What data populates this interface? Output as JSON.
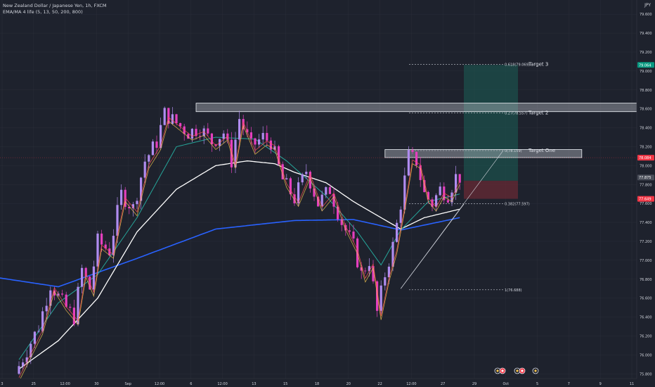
{
  "header": {
    "symbol_title": "New Zealand Dollar / Japanese Yen, 1h, FXCM",
    "indicator_label": "EMA/MA 4 life (5, 13, 50, 200, 800)",
    "currency": "JPY"
  },
  "colors": {
    "background": "#1e222d",
    "grid": "#2a2e39",
    "text": "#d1d4dc",
    "candle_up": "#b08cf0",
    "candle_down": "#e53fbf",
    "ema5": "#ff5252",
    "ema13": "#f9c74f",
    "ema50": "#26a69a",
    "ema200": "#ffffff",
    "ema800": "#2962ff",
    "target_zone": "#1b5e55",
    "stop_zone": "#6b2a35",
    "price_line": "#f23645"
  },
  "chart_data": {
    "type": "candlestick",
    "title": "New Zealand Dollar / Japanese Yen, 1h, FXCM",
    "currency": "JPY",
    "ylim": [
      75.75,
      79.75
    ],
    "y_ticks": [
      "79.600",
      "79.400",
      "79.200",
      "79.000",
      "78.800",
      "78.600",
      "78.400",
      "78.200",
      "78.000",
      "77.800",
      "77.600",
      "77.400",
      "77.200",
      "77.000",
      "76.800",
      "76.600",
      "76.400",
      "76.200",
      "76.000",
      "75.800"
    ],
    "x_ticks": [
      "3",
      "25",
      "12:00",
      "30",
      "Sep",
      "12:00",
      "6",
      "12:00",
      "13",
      "15",
      "18",
      "20",
      "22",
      "12:00",
      "27",
      "29",
      "Oct",
      "5",
      "7",
      "9",
      "11"
    ],
    "price_path": [
      {
        "t": 0,
        "p": 75.8
      },
      {
        "t": 3,
        "p": 76.05
      },
      {
        "t": 6,
        "p": 76.3
      },
      {
        "t": 9,
        "p": 76.75
      },
      {
        "t": 12,
        "p": 76.55
      },
      {
        "t": 15,
        "p": 76.4
      },
      {
        "t": 17,
        "p": 76.9
      },
      {
        "t": 19,
        "p": 76.7
      },
      {
        "t": 21,
        "p": 77.2
      },
      {
        "t": 24,
        "p": 77.1
      },
      {
        "t": 27,
        "p": 77.7
      },
      {
        "t": 30,
        "p": 77.55
      },
      {
        "t": 33,
        "p": 78.05
      },
      {
        "t": 36,
        "p": 78.25
      },
      {
        "t": 38,
        "p": 78.55
      },
      {
        "t": 41,
        "p": 78.45
      },
      {
        "t": 44,
        "p": 78.35
      },
      {
        "t": 47,
        "p": 78.4
      },
      {
        "t": 50,
        "p": 78.25
      },
      {
        "t": 53,
        "p": 78.35
      },
      {
        "t": 55,
        "p": 78.05
      },
      {
        "t": 57,
        "p": 78.5
      },
      {
        "t": 60,
        "p": 78.2
      },
      {
        "t": 63,
        "p": 78.3
      },
      {
        "t": 65,
        "p": 78.25
      },
      {
        "t": 68,
        "p": 77.85
      },
      {
        "t": 71,
        "p": 77.65
      },
      {
        "t": 74,
        "p": 77.95
      },
      {
        "t": 77,
        "p": 77.6
      },
      {
        "t": 80,
        "p": 77.75
      },
      {
        "t": 83,
        "p": 77.4
      },
      {
        "t": 86,
        "p": 77.15
      },
      {
        "t": 88,
        "p": 76.85
      },
      {
        "t": 90,
        "p": 77.0
      },
      {
        "t": 92,
        "p": 76.45
      },
      {
        "t": 94,
        "p": 76.85
      },
      {
        "t": 96,
        "p": 77.15
      },
      {
        "t": 98,
        "p": 77.6
      },
      {
        "t": 100,
        "p": 78.1
      },
      {
        "t": 102,
        "p": 78.05
      },
      {
        "t": 104,
        "p": 77.7
      },
      {
        "t": 106,
        "p": 77.6
      },
      {
        "t": 108,
        "p": 77.75
      },
      {
        "t": 110,
        "p": 77.7
      },
      {
        "t": 112,
        "p": 77.88
      }
    ],
    "candle_count": 113,
    "last_index": 112,
    "future_slots": 52,
    "price_swing_lows": [
      {
        "t": 0,
        "p": 75.75
      },
      {
        "t": 92,
        "p": 76.35
      }
    ],
    "moving_averages": [
      {
        "name": "EMA 800",
        "color": "#2962ff",
        "points": [
          {
            "t": -6,
            "p": 76.82
          },
          {
            "t": 10,
            "p": 76.72
          },
          {
            "t": 30,
            "p": 77.02
          },
          {
            "t": 50,
            "p": 77.33
          },
          {
            "t": 70,
            "p": 77.42
          },
          {
            "t": 85,
            "p": 77.43
          },
          {
            "t": 97,
            "p": 77.32
          },
          {
            "t": 112,
            "p": 77.45
          }
        ]
      },
      {
        "name": "MA 200",
        "color": "#ffffff",
        "points": [
          {
            "t": 0,
            "p": 75.85
          },
          {
            "t": 10,
            "p": 76.15
          },
          {
            "t": 20,
            "p": 76.6
          },
          {
            "t": 30,
            "p": 77.3
          },
          {
            "t": 40,
            "p": 77.75
          },
          {
            "t": 50,
            "p": 78.0
          },
          {
            "t": 58,
            "p": 78.05
          },
          {
            "t": 65,
            "p": 78.02
          },
          {
            "t": 70,
            "p": 77.93
          },
          {
            "t": 78,
            "p": 77.82
          },
          {
            "t": 85,
            "p": 77.62
          },
          {
            "t": 92,
            "p": 77.45
          },
          {
            "t": 97,
            "p": 77.33
          },
          {
            "t": 103,
            "p": 77.45
          },
          {
            "t": 112,
            "p": 77.54
          }
        ]
      },
      {
        "name": "EMA 50",
        "color": "#26a69a",
        "points": [
          {
            "t": 0,
            "p": 75.95
          },
          {
            "t": 10,
            "p": 76.55
          },
          {
            "t": 20,
            "p": 76.85
          },
          {
            "t": 30,
            "p": 77.45
          },
          {
            "t": 40,
            "p": 78.2
          },
          {
            "t": 50,
            "p": 78.3
          },
          {
            "t": 60,
            "p": 78.28
          },
          {
            "t": 68,
            "p": 78.05
          },
          {
            "t": 78,
            "p": 77.68
          },
          {
            "t": 86,
            "p": 77.3
          },
          {
            "t": 92,
            "p": 76.95
          },
          {
            "t": 97,
            "p": 77.32
          },
          {
            "t": 104,
            "p": 77.62
          },
          {
            "t": 112,
            "p": 77.7
          }
        ]
      }
    ],
    "trendlines": [
      {
        "from": {
          "t": 97,
          "p": 76.7
        },
        "to": {
          "t": 112,
          "p": 77.55
        }
      }
    ],
    "zones": [
      {
        "name": "resistance",
        "t_from": 45,
        "t_to": 165,
        "p_from": 78.57,
        "p_to": 78.66
      },
      {
        "name": "target-one-box",
        "t_from": 93,
        "t_to": 143,
        "p_from": 78.085,
        "p_to": 78.17
      }
    ],
    "fib_levels": [
      {
        "label": "0.618(79.069)",
        "price": 79.069
      },
      {
        "label": "0.27(78.557)",
        "price": 78.557
      },
      {
        "label": "0(78.159)",
        "price": 78.159
      },
      {
        "label": "0.382(77.597)",
        "price": 77.597
      },
      {
        "label": "1(76.688)",
        "price": 76.688
      }
    ],
    "target_labels": [
      {
        "text": "Target 3",
        "price": 79.069
      },
      {
        "text": "Target 2",
        "price": 78.557
      },
      {
        "text": "Target One",
        "price": 78.159
      }
    ],
    "position": {
      "entry": 77.84,
      "target": 79.064,
      "stop": 77.649
    },
    "price_badges": [
      {
        "text": "79.064",
        "price": 79.064,
        "color": "#089981"
      },
      {
        "text": "78.084",
        "price": 78.084,
        "color": "#f23645"
      },
      {
        "text": "77.875",
        "price": 77.875,
        "color": "#4a4e59"
      },
      {
        "text": "77.649",
        "price": 77.649,
        "color": "#f23645"
      }
    ],
    "grid": true,
    "legend_position": "top-left"
  }
}
